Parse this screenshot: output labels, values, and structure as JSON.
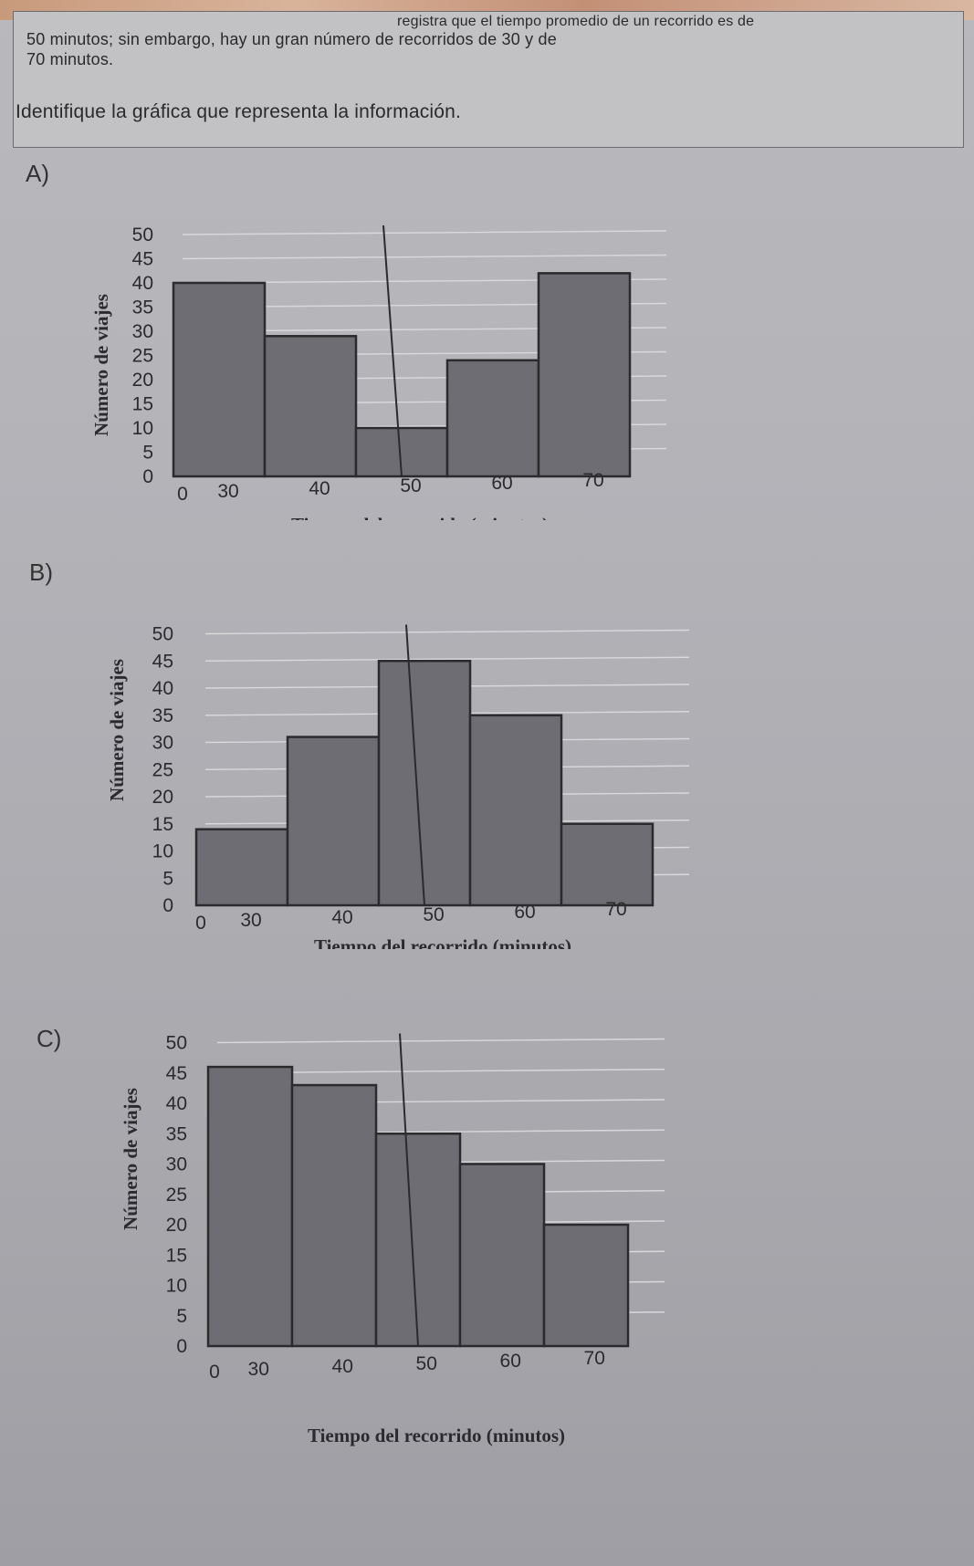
{
  "problem": {
    "line1_top": "registra que el tiempo promedio de un recorrido es de",
    "line1": "50 minutos; sin embargo, hay un gran número de recorridos de 30 y de",
    "line2": "70 minutos.",
    "question": "Identifique la gráfica que representa la información."
  },
  "options": [
    {
      "label": "A)"
    },
    {
      "label": "B)"
    },
    {
      "label": "C)"
    }
  ],
  "chart_data": [
    {
      "type": "bar",
      "option": "A)",
      "categories": [
        "30",
        "40",
        "50",
        "60",
        "70"
      ],
      "values": [
        40,
        29,
        10,
        24,
        42
      ],
      "xlabel": "Tiempo del recorrido (minutos)",
      "ylabel": "Número de viajes",
      "x_ticks": [
        "0",
        "30",
        "40",
        "50",
        "60",
        "70"
      ],
      "y_ticks": [
        "0",
        "5",
        "10",
        "15",
        "20",
        "25",
        "30",
        "35",
        "40",
        "45",
        "50"
      ],
      "ylim": [
        0,
        50
      ],
      "grid": true
    },
    {
      "type": "bar",
      "option": "B)",
      "categories": [
        "30",
        "40",
        "50",
        "60",
        "70"
      ],
      "values": [
        14,
        31,
        45,
        35,
        15
      ],
      "xlabel": "Tiempo del recorrido (minutos)",
      "ylabel": "Número de viajes",
      "x_ticks": [
        "0",
        "30",
        "40",
        "50",
        "60",
        "70"
      ],
      "y_ticks": [
        "0",
        "5",
        "10",
        "15",
        "20",
        "25",
        "30",
        "35",
        "40",
        "45",
        "50"
      ],
      "ylim": [
        0,
        50
      ],
      "grid": true
    },
    {
      "type": "bar",
      "option": "C)",
      "categories": [
        "30",
        "40",
        "50",
        "60",
        "70"
      ],
      "values": [
        46,
        43,
        35,
        30,
        20
      ],
      "xlabel": "Tiempo del recorrido (minutos)",
      "ylabel": "Número de viajes",
      "x_ticks": [
        "0",
        "30",
        "40",
        "50",
        "60",
        "70"
      ],
      "y_ticks": [
        "0",
        "5",
        "10",
        "15",
        "20",
        "25",
        "30",
        "35",
        "40",
        "45",
        "50"
      ],
      "ylim": [
        0,
        50
      ],
      "grid": true
    }
  ]
}
